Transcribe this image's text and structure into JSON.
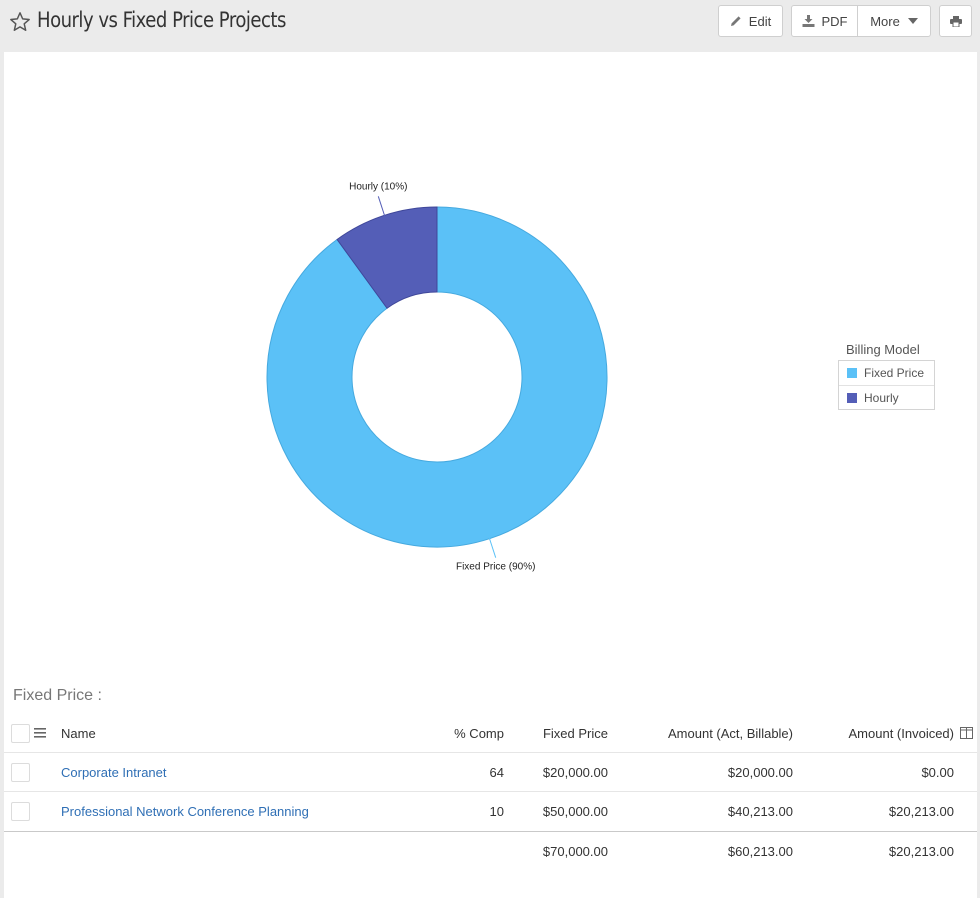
{
  "header": {
    "title": "Hourly vs Fixed Price Projects",
    "buttons": {
      "edit": "Edit",
      "pdf": "PDF",
      "more": "More"
    }
  },
  "chart_data": {
    "type": "pie",
    "donut": true,
    "slices": [
      {
        "label": "Fixed Price",
        "value": 90,
        "data_label": "Fixed Price (90%)",
        "color": "#5bc1f7"
      },
      {
        "label": "Hourly",
        "value": 10,
        "data_label": "Hourly (10%)",
        "color": "#545eb7"
      }
    ],
    "legend": {
      "title": "Billing Model",
      "position": "right"
    }
  },
  "table": {
    "section_title": "Fixed Price :",
    "columns": [
      "Name",
      "% Comp",
      "Fixed Price",
      "Amount (Act, Billable)",
      "Amount (Invoiced)"
    ],
    "rows": [
      {
        "name": "Corporate Intranet",
        "comp": "64",
        "fixed": "$20,000.00",
        "act": "$20,000.00",
        "inv": "$0.00"
      },
      {
        "name": "Professional Network Conference Planning",
        "comp": "10",
        "fixed": "$50,000.00",
        "act": "$40,213.00",
        "inv": "$20,213.00"
      }
    ],
    "totals": {
      "fixed": "$70,000.00",
      "act": "$60,213.00",
      "inv": "$20,213.00"
    }
  },
  "colors": {
    "link": "#2f6fb5",
    "fixed_price": "#5bc1f7",
    "hourly": "#545eb7"
  }
}
